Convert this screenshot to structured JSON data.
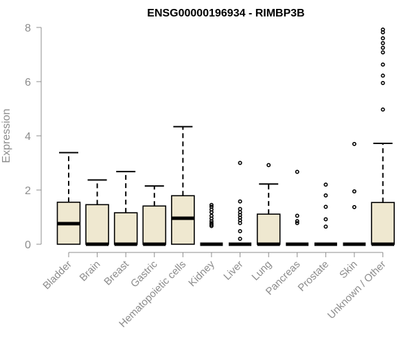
{
  "chart_data": {
    "type": "boxplot",
    "title": "ENSG00000196934 - RIMBP3B",
    "xlabel": "",
    "ylabel": "Expression",
    "ylim": [
      0,
      8
    ],
    "yticks": [
      "0",
      "2",
      "4",
      "6",
      "8"
    ],
    "grid": false,
    "box_fill": "#efe8d0",
    "categories": [
      "Bladder",
      "Brain",
      "Breast",
      "Gastric",
      "Hematopoietic cells",
      "Kidney",
      "Liver",
      "Lung",
      "Pancreas",
      "Prostate",
      "Skin",
      "Unknown / Other"
    ],
    "boxes": [
      {
        "q1": 0,
        "median": 0.76,
        "q3": 1.55,
        "whisker_low": 0,
        "whisker_high": 3.38,
        "outliers": []
      },
      {
        "q1": 0,
        "median": 0,
        "q3": 1.46,
        "whisker_low": 0,
        "whisker_high": 2.37,
        "outliers": []
      },
      {
        "q1": 0,
        "median": 0,
        "q3": 1.16,
        "whisker_low": 0,
        "whisker_high": 2.68,
        "outliers": []
      },
      {
        "q1": 0,
        "median": 0,
        "q3": 1.41,
        "whisker_low": 0,
        "whisker_high": 2.15,
        "outliers": []
      },
      {
        "q1": 0,
        "median": 0.96,
        "q3": 1.79,
        "whisker_low": 0,
        "whisker_high": 4.34,
        "outliers": []
      },
      {
        "q1": 0,
        "median": 0,
        "q3": 0,
        "whisker_low": 0,
        "whisker_high": 0,
        "outliers": [
          0.67,
          0.72,
          0.78,
          0.85,
          0.95,
          1.05,
          1.18,
          1.28,
          1.38,
          1.45
        ]
      },
      {
        "q1": 0,
        "median": 0,
        "q3": 0,
        "whisker_low": 0,
        "whisker_high": 0,
        "outliers": [
          0.2,
          0.48,
          0.78,
          0.88,
          0.98,
          1.08,
          1.18,
          1.3,
          1.58,
          3.0
        ]
      },
      {
        "q1": 0,
        "median": 0,
        "q3": 1.11,
        "whisker_low": 0,
        "whisker_high": 2.22,
        "outliers": [
          2.92
        ]
      },
      {
        "q1": 0,
        "median": 0,
        "q3": 0,
        "whisker_low": 0,
        "whisker_high": 0,
        "outliers": [
          0.78,
          0.85,
          1.05,
          2.67
        ]
      },
      {
        "q1": 0,
        "median": 0,
        "q3": 0,
        "whisker_low": 0,
        "whisker_high": 0,
        "outliers": [
          0.65,
          0.92,
          1.38,
          1.8,
          2.2
        ]
      },
      {
        "q1": 0,
        "median": 0,
        "q3": 0,
        "whisker_low": 0,
        "whisker_high": 0,
        "outliers": [
          1.37,
          1.95,
          3.7
        ]
      },
      {
        "q1": 0,
        "median": 0,
        "q3": 1.54,
        "whisker_low": 0,
        "whisker_high": 3.72,
        "outliers": [
          4.97,
          5.95,
          6.22,
          6.63,
          7.08,
          7.25,
          7.42,
          7.6,
          7.82,
          7.92
        ]
      }
    ]
  }
}
